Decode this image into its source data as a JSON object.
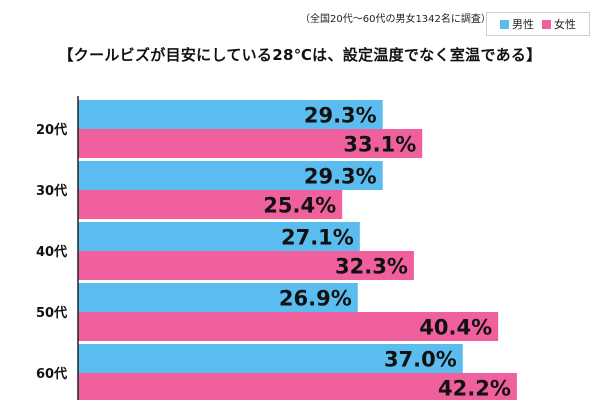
{
  "note": "（全国20代～60代の男女1342名に調査）",
  "title": "【クールビズが目安にしている28℃は、設定温度でなく室温である】",
  "legend": {
    "male": "男性",
    "female": "女性"
  },
  "colors": {
    "male": "#5bbcf0",
    "female": "#f0609e",
    "axis": "#222222"
  },
  "chart_data": {
    "type": "bar",
    "orientation": "horizontal",
    "title": "【クールビズが目安にしている28℃は、設定温度でなく室温である】",
    "categories": [
      "20代",
      "30代",
      "40代",
      "50代",
      "60代"
    ],
    "series": [
      {
        "name": "男性",
        "values": [
          29.3,
          29.3,
          27.1,
          26.9,
          37.0
        ],
        "labels": [
          "29.3%",
          "29.3%",
          "27.1%",
          "26.9%",
          "37.0%"
        ]
      },
      {
        "name": "女性",
        "values": [
          33.1,
          25.4,
          32.3,
          40.4,
          42.2
        ],
        "labels": [
          "33.1%",
          "25.4%",
          "32.3%",
          "40.4%",
          "42.2%"
        ]
      }
    ],
    "xlim": [
      0,
      50
    ],
    "xlabel": "",
    "ylabel": "",
    "legend_position": "top-right",
    "grid": false
  }
}
